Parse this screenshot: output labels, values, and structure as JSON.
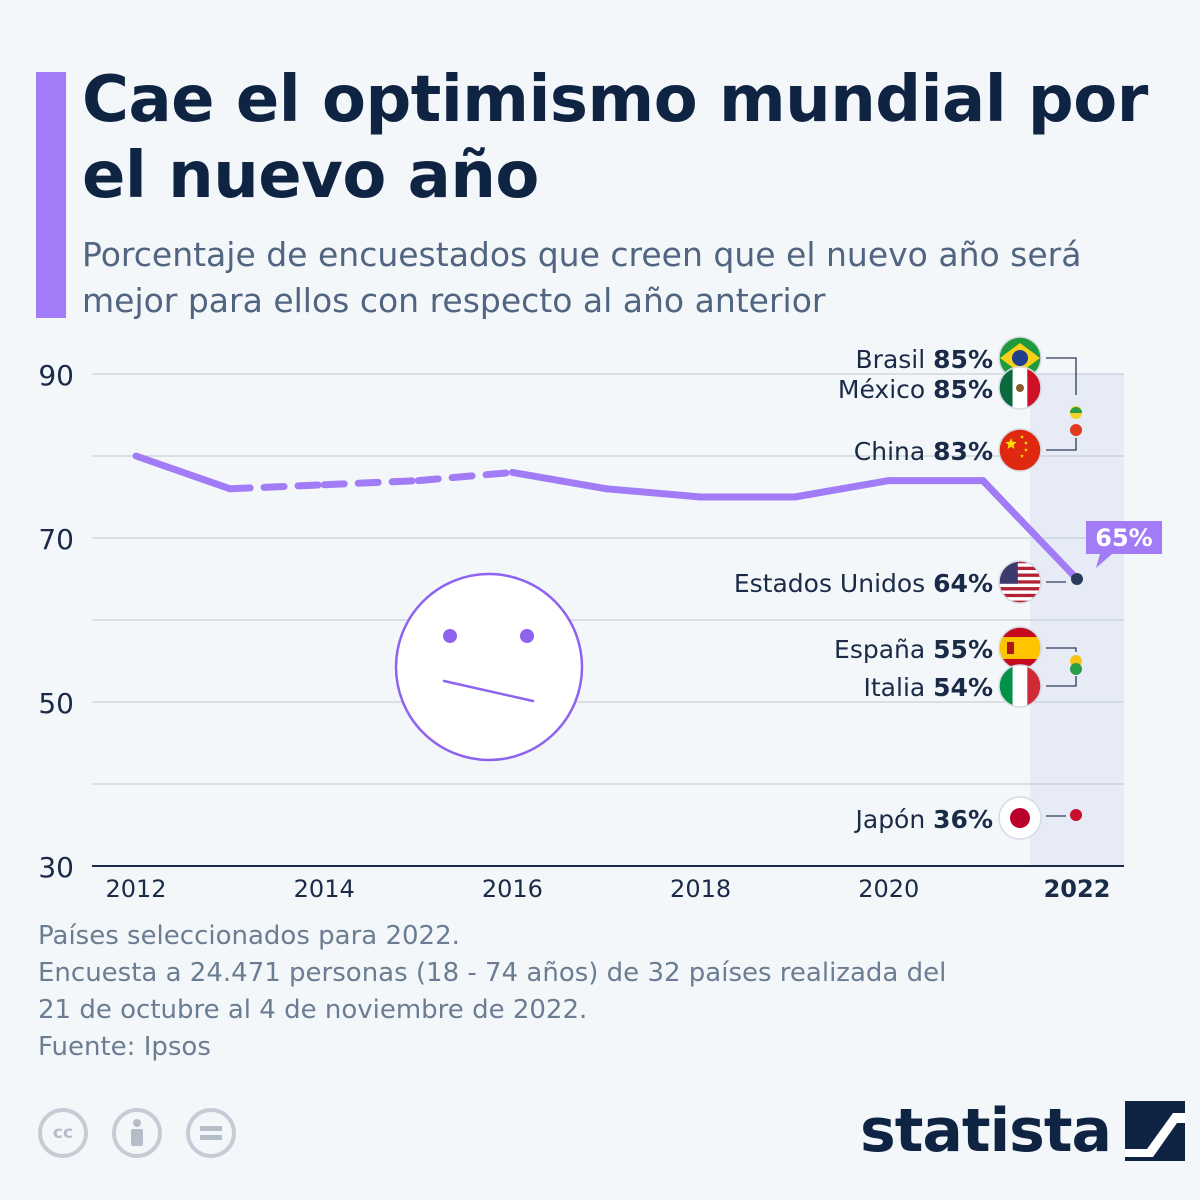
{
  "header": {
    "title": "Cae el optimismo mundial por el nuevo año",
    "subtitle": "Porcentaje de encuestados que creen que el nuevo año será mejor para ellos con respecto al año anterior"
  },
  "colors": {
    "accent": "#a27cf6",
    "line": "#a27cf6",
    "text_dark": "#0f2342",
    "text_muted": "#516580",
    "grid": "#c9d0da",
    "highlight_band": "#e6ebf5"
  },
  "chart_data": {
    "type": "line",
    "x": [
      2012,
      2013,
      2014,
      2015,
      2016,
      2017,
      2018,
      2019,
      2020,
      2021,
      2022
    ],
    "series": [
      {
        "values": [
          80,
          76,
          76.5,
          77,
          78,
          76,
          75,
          75,
          77,
          77,
          65
        ],
        "dashed_between": [
          2013,
          2016
        ]
      }
    ],
    "y_ticks": [
      90,
      70,
      50,
      30
    ],
    "x_ticks": [
      "2012",
      "2014",
      "2016",
      "2018",
      "2020",
      "2022"
    ],
    "ylim": [
      30,
      90
    ],
    "xlim": [
      2012,
      2022
    ],
    "grid": true,
    "highlight_year": 2022,
    "callout": {
      "x": 2022,
      "y": 65,
      "text": "65%"
    },
    "countries": [
      {
        "name": "Brasil",
        "value": 85,
        "label": "85%",
        "flag": "brazil",
        "dot_colors": [
          "#f5d329",
          "#2a9d47"
        ]
      },
      {
        "name": "México",
        "value": 85,
        "label": "85%",
        "flag": "mexico",
        "dot_colors": [
          "#2a9d47",
          "#f5d329"
        ]
      },
      {
        "name": "China",
        "value": 83,
        "label": "83%",
        "flag": "china",
        "dot_colors": [
          "#e23a1f"
        ]
      },
      {
        "name": "Estados Unidos",
        "value": 64,
        "label": "64%",
        "flag": "usa",
        "dot_colors": [
          "#2c3a5a"
        ]
      },
      {
        "name": "España",
        "value": 55,
        "label": "55%",
        "flag": "spain",
        "dot_colors": [
          "#f5c518"
        ]
      },
      {
        "name": "Italia",
        "value": 54,
        "label": "54%",
        "flag": "italy",
        "dot_colors": [
          "#2a9d47"
        ]
      },
      {
        "name": "Japón",
        "value": 36,
        "label": "36%",
        "flag": "japan",
        "dot_colors": [
          "#c8102e"
        ]
      }
    ]
  },
  "footer": {
    "note1": "Países seleccionados para 2022.",
    "note2": "Encuesta a 24.471 personas (18 - 74 años) de 32 países realizada del",
    "note3": "21 de octubre al 4 de noviembre de 2022.",
    "source": "Fuente: Ipsos"
  },
  "license_icons": [
    "cc-icon",
    "attribution-icon",
    "noderivs-icon"
  ],
  "brand": {
    "name": "statista"
  }
}
